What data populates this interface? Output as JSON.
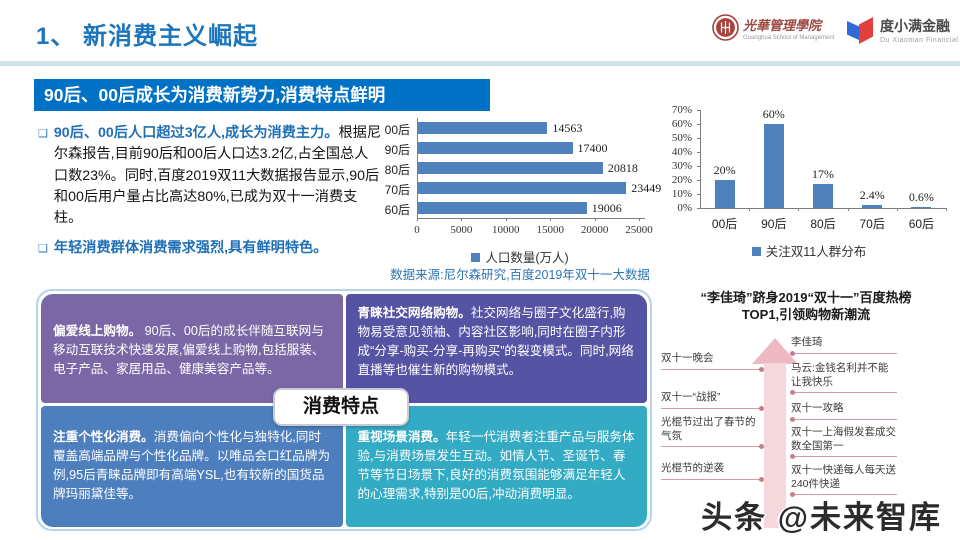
{
  "page": {
    "title": "1、 新消费主义崛起",
    "banner": "90后、00后成长为消费新势力,消费特点鲜明",
    "watermark": "头条 @未来智库"
  },
  "logos": {
    "guanghua_text": "光華管理學院",
    "guanghua_caption": "Guanghua School of Management",
    "duxiaoman_text": "度小满金融",
    "duxiaoman_caption": "Du Xiaoman Financial"
  },
  "bullets": [
    {
      "lead": "90后、00后人口超过3亿人,成长为消费主力。",
      "body": "根据尼尔森报告,目前90后和00后人口达3.2亿,占全国总人口数23%。同时,百度2019双11大数据报告显示,90后和00后用户量占比高达80%,已成为双十一消费支柱。"
    },
    {
      "lead": "年轻消费群体消费需求强烈,具有鲜明特色。",
      "body": ""
    }
  ],
  "source_note": "数据来源:尼尔森研究,百度2019年双十一大数据",
  "chart_data": [
    {
      "type": "bar",
      "orientation": "horizontal",
      "categories": [
        "00后",
        "90后",
        "80后",
        "70后",
        "60后"
      ],
      "values": [
        14563,
        17400,
        20818,
        23449,
        19006
      ],
      "xlim": [
        0,
        25000
      ],
      "xticks": [
        0,
        5000,
        10000,
        15000,
        20000,
        25000
      ],
      "legend": "人口数量(万人)",
      "legend_position": "bottom",
      "bar_color": "#4f81bd",
      "title": ""
    },
    {
      "type": "bar",
      "orientation": "vertical",
      "categories": [
        "00后",
        "90后",
        "80后",
        "70后",
        "60后"
      ],
      "values": [
        20,
        60,
        17,
        2.4,
        0.6
      ],
      "labels": [
        "20%",
        "60%",
        "17%",
        "2.4%",
        "0.6%"
      ],
      "ylim": [
        0,
        70
      ],
      "ytick_step": 10,
      "yticks": [
        "0%",
        "10%",
        "20%",
        "30%",
        "40%",
        "50%",
        "60%",
        "70%"
      ],
      "legend": "关注双11人群分布",
      "legend_position": "bottom",
      "bar_color": "#4f81bd",
      "title": ""
    }
  ],
  "badge": "消费特点",
  "quadrants": [
    {
      "lead": "偏爱线上购物。",
      "body": " 90后、00后的成长伴随互联网与移动互联技术快速发展,偏爱线上购物,包括服装、电子产品、家居用品、健康美容产品等。"
    },
    {
      "lead": "青睐社交网络购物。",
      "body": "社交网络与圈子文化盛行,购物易受意见领袖、内容社区影响,同时在圈子内形成“分享-购买-分享-再购买”的裂变模式。同时,网络直播等也催生新的购物模式。"
    },
    {
      "lead": "注重个性化消费。",
      "body": "消费偏向个性化与独特化,同时覆盖高端品牌与个性化品牌。以唯品会口红品牌为例,95后青睐品牌即有高端YSL,也有较新的国货品牌玛丽黛佳等。"
    },
    {
      "lead": "重视场景消费。",
      "body": "年轻一代消费者注重产品与服务体验,与消费场景发生互动。如情人节、圣诞节、春节等节日场景下,良好的消费氛围能够满足年轻人的心理需求,特别是00后,冲动消费明显。"
    }
  ],
  "timeline": {
    "title_line1": "“李佳琦”跻身2019“双十一”百度热榜",
    "title_line2": "TOP1,引领购物新潮流",
    "left_items": [
      "双十一晚会",
      "双十一“战报”",
      "光棍节过出了春节的气氛",
      "光棍节的逆袭"
    ],
    "right_items": [
      "李佳琦",
      "马云:金钱名利并不能让我快乐",
      "双十一攻略",
      "双十一上海假发套成交数全国第一",
      "双十一快递每人每天送240件快递"
    ]
  },
  "colors": {
    "title_blue": "#1b75bc",
    "banner_blue": "#0072c6",
    "bar_blue": "#4f81bd",
    "quadrant_tl": "#7a68a6",
    "quadrant_tr": "#5553a4",
    "quadrant_bl": "#4d7ebd",
    "quadrant_br": "#33abc4",
    "arrow_head": "#edb9c3",
    "arrow_body": "#f4d8dc",
    "timeline_line": "#d89aa5",
    "source_blue": "#2e75b6"
  }
}
